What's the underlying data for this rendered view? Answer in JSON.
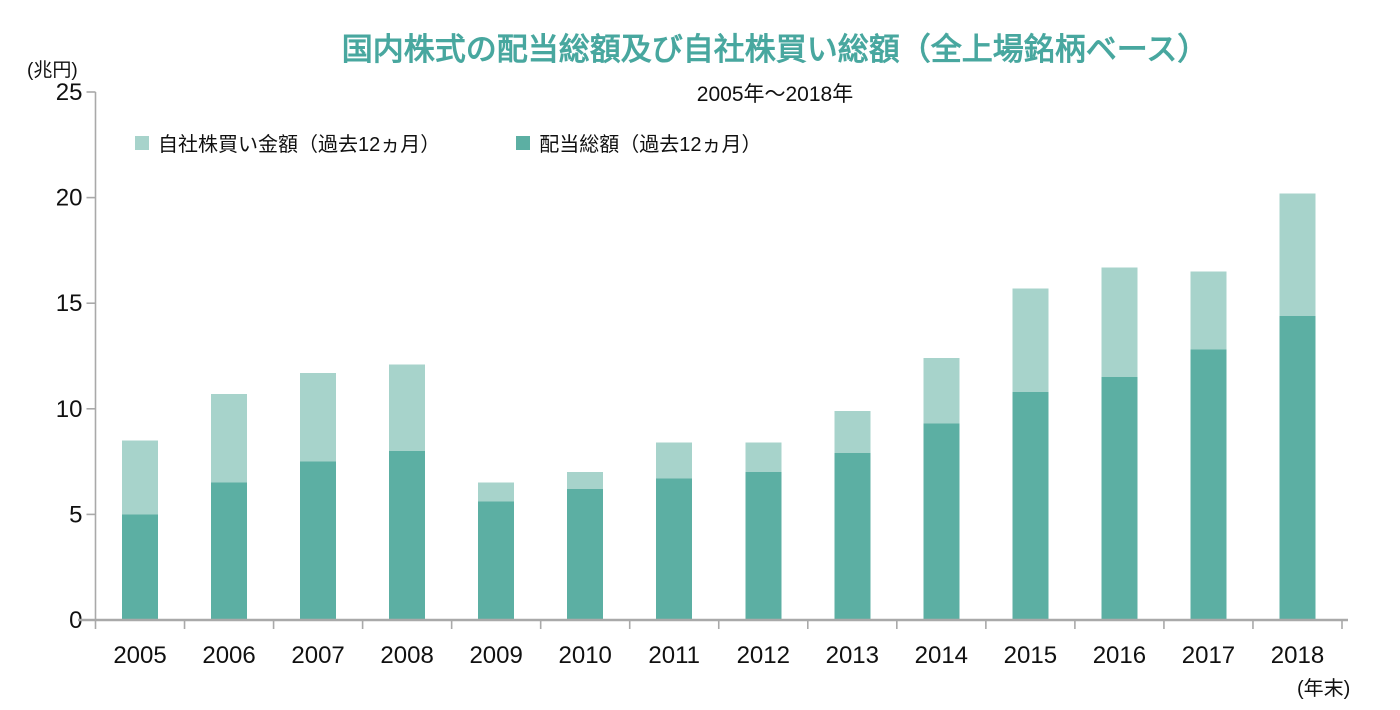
{
  "chart_data": {
    "type": "bar",
    "stacked": true,
    "title": "国内株式の配当総額及び自社株買い総額（全上場銘柄ベース）",
    "subtitle": "2005年～2018年",
    "y_unit_label": "(兆円)",
    "x_unit_label": "(年末)",
    "categories": [
      "2005",
      "2006",
      "2007",
      "2008",
      "2009",
      "2010",
      "2011",
      "2012",
      "2013",
      "2014",
      "2015",
      "2016",
      "2017",
      "2018"
    ],
    "series": [
      {
        "key": "buyback",
        "name": "自社株買い金額（過去12ヵ月）",
        "color": "#a7d3cb",
        "values": [
          3.5,
          4.2,
          4.2,
          4.1,
          0.9,
          0.8,
          1.7,
          1.4,
          2.0,
          3.1,
          4.9,
          5.2,
          3.7,
          5.8
        ]
      },
      {
        "key": "dividend",
        "name": "配当総額（過去12ヵ月）",
        "color": "#5cafa3",
        "values": [
          5.0,
          6.5,
          7.5,
          8.0,
          5.6,
          6.2,
          6.7,
          7.0,
          7.9,
          9.3,
          10.8,
          11.5,
          12.8,
          14.4
        ]
      }
    ],
    "stack_order": [
      "dividend",
      "buyback"
    ],
    "ylim": [
      0,
      25
    ],
    "yticks": [
      0,
      5,
      10,
      15,
      20,
      25
    ],
    "grid": false,
    "legend_position": "top-left"
  },
  "colors": {
    "title": "#48a79f",
    "axis": "#a9a9a9",
    "tick_text": "#101010"
  }
}
